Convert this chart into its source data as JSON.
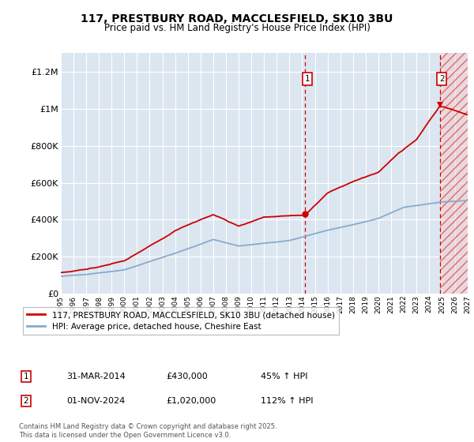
{
  "title": "117, PRESTBURY ROAD, MACCLESFIELD, SK10 3BU",
  "subtitle": "Price paid vs. HM Land Registry's House Price Index (HPI)",
  "background_color": "#ffffff",
  "plot_bg_color": "#dce6f1",
  "ylim": [
    0,
    1300000
  ],
  "yticks": [
    0,
    200000,
    400000,
    600000,
    800000,
    1000000,
    1200000
  ],
  "ytick_labels": [
    "£0",
    "£200K",
    "£400K",
    "£600K",
    "£800K",
    "£1M",
    "£1.2M"
  ],
  "year_start": 1995,
  "year_end": 2027,
  "sale1_year": 2014.25,
  "sale1_price": 430000,
  "sale2_year": 2024.83,
  "sale2_price": 1020000,
  "red_line_color": "#cc0000",
  "blue_line_color": "#88aacc",
  "annotation1_label": "1",
  "annotation2_label": "2",
  "legend_entry1": "117, PRESTBURY ROAD, MACCLESFIELD, SK10 3BU (detached house)",
  "legend_entry2": "HPI: Average price, detached house, Cheshire East",
  "table_row1": [
    "1",
    "31-MAR-2014",
    "£430,000",
    "45% ↑ HPI"
  ],
  "table_row2": [
    "2",
    "01-NOV-2024",
    "£1,020,000",
    "112% ↑ HPI"
  ],
  "footer": "Contains HM Land Registry data © Crown copyright and database right 2025.\nThis data is licensed under the Open Government Licence v3.0.",
  "gridline_color": "#ffffff",
  "hatch_alpha": 0.12
}
